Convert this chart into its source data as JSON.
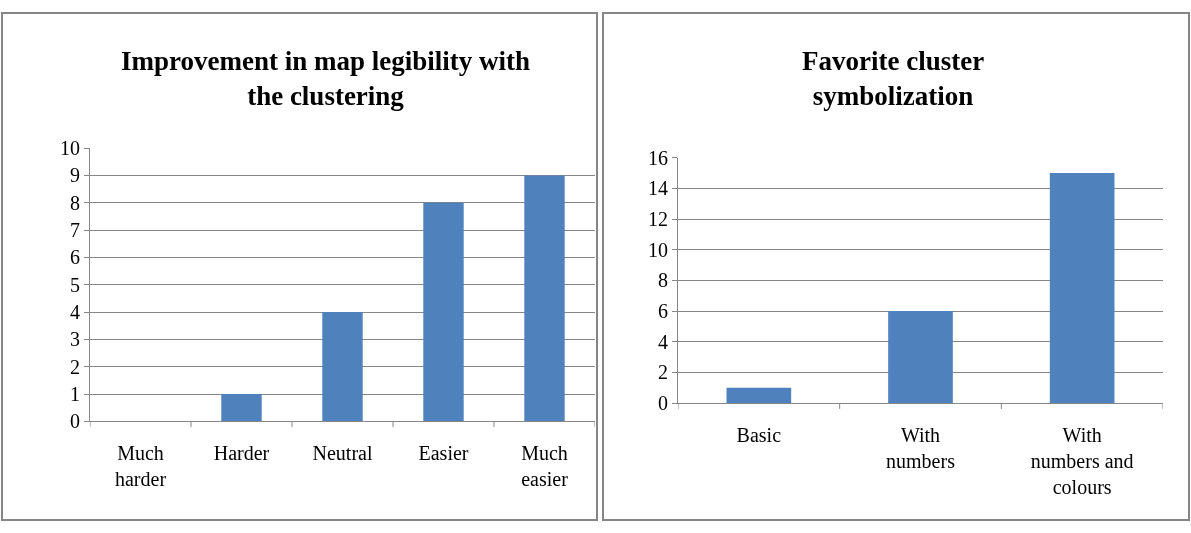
{
  "chart_data": [
    {
      "type": "bar",
      "title": "Improvement in map legibility with the clustering",
      "categories": [
        "Much harder",
        "Harder",
        "Neutral",
        "Easier",
        "Much easier"
      ],
      "values": [
        0,
        1,
        4,
        8,
        9
      ],
      "color": "#4f81bd",
      "ylim": [
        0,
        10
      ],
      "yticks": [
        0,
        1,
        2,
        3,
        4,
        5,
        6,
        7,
        8,
        9,
        10
      ],
      "grid": "y"
    },
    {
      "type": "bar",
      "title": "Favorite cluster symbolization",
      "categories": [
        "Basic",
        "With numbers",
        "With numbers and colours"
      ],
      "values": [
        1,
        6,
        15
      ],
      "color": "#4f81bd",
      "ylim": [
        0,
        16
      ],
      "yticks": [
        0,
        2,
        4,
        6,
        8,
        10,
        12,
        14,
        16
      ],
      "grid": "y"
    }
  ]
}
